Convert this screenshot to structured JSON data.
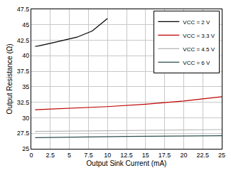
{
  "chart_data": {
    "type": "line",
    "x_label": "Output Sink Current (mA)",
    "y_label": "Output Resistance (Ω)",
    "xlim": [
      0,
      25
    ],
    "xticks": [
      0,
      2.5,
      5,
      7.5,
      10,
      12.5,
      15,
      17.5,
      20,
      22.5,
      25
    ],
    "ylim": [
      25,
      47.5
    ],
    "yticks": [
      25,
      27.5,
      30,
      32.5,
      35,
      37.5,
      40,
      42.5,
      45,
      47.5
    ],
    "grid": true,
    "legend": "top-right",
    "series": [
      {
        "name": "VCC = 2 V",
        "color": "#000000",
        "x": [
          0.5,
          1,
          2.5,
          4,
          6,
          8,
          9,
          10
        ],
        "values": [
          41.5,
          41.6,
          42.0,
          42.4,
          43.0,
          44.0,
          45.0,
          46.0
        ]
      },
      {
        "name": "VCC = 3.3 V",
        "color": "#c00000",
        "x": [
          0.5,
          5,
          10,
          15,
          20,
          25
        ],
        "values": [
          31.3,
          31.5,
          31.8,
          32.2,
          32.7,
          33.4
        ]
      },
      {
        "name": "VCC = 4.5 V",
        "color": "#b4b4b4",
        "x": [
          0.5,
          10,
          20,
          25
        ],
        "values": [
          27.8,
          27.9,
          28.0,
          28.1
        ]
      },
      {
        "name": "VCC = 6 V",
        "color": "#2f4f4f",
        "x": [
          0.5,
          12.5,
          25
        ],
        "values": [
          26.8,
          27.0,
          27.1
        ]
      }
    ]
  }
}
